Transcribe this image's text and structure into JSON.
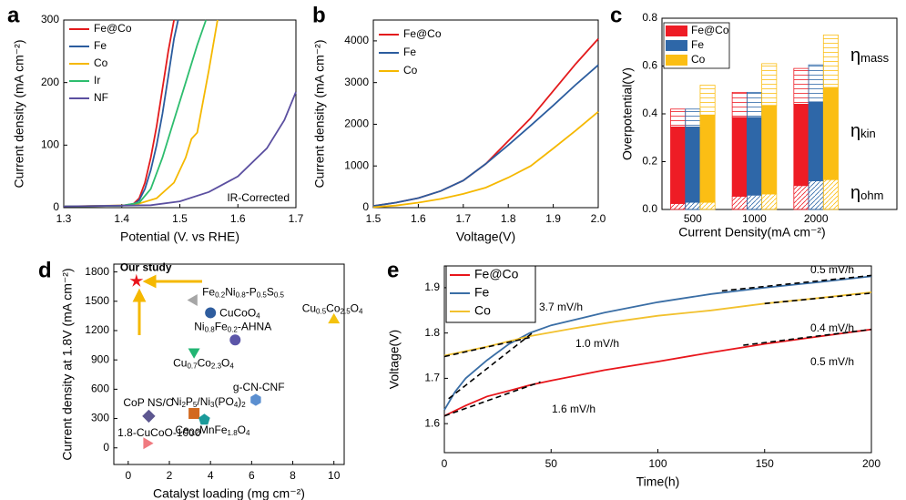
{
  "chart_data": [
    {
      "panel": "a",
      "type": "line",
      "xlabel": "Potential (V. vs RHE)",
      "ylabel": "Current density (mA cm⁻²)",
      "xlim": [
        1.3,
        1.7
      ],
      "xticks": [
        1.3,
        1.4,
        1.5,
        1.6,
        1.7
      ],
      "ylim": [
        0,
        300
      ],
      "yticks": [
        0,
        100,
        200,
        300
      ],
      "legend": "upper-left",
      "annotations": [
        {
          "text": "IR-Corrected"
        }
      ],
      "series": [
        {
          "name": "Fe@Co",
          "color": "#e31a1c",
          "x": [
            1.3,
            1.4,
            1.42,
            1.43,
            1.44,
            1.45,
            1.46,
            1.47,
            1.48,
            1.49
          ],
          "values": [
            2,
            3,
            6,
            15,
            40,
            80,
            130,
            190,
            250,
            300
          ]
        },
        {
          "name": "Fe",
          "color": "#2b5c9e",
          "x": [
            1.3,
            1.4,
            1.42,
            1.43,
            1.44,
            1.45,
            1.46,
            1.47,
            1.48,
            1.49,
            1.497
          ],
          "values": [
            2,
            3,
            5,
            12,
            30,
            60,
            100,
            150,
            210,
            270,
            300
          ]
        },
        {
          "name": "Co",
          "color": "#f5b800",
          "x": [
            1.3,
            1.42,
            1.46,
            1.49,
            1.51,
            1.52,
            1.53,
            1.54,
            1.55,
            1.565
          ],
          "values": [
            2,
            4,
            15,
            40,
            80,
            110,
            120,
            170,
            220,
            300
          ]
        },
        {
          "name": "Ir",
          "color": "#2dbd6e",
          "x": [
            1.3,
            1.4,
            1.43,
            1.45,
            1.47,
            1.49,
            1.51,
            1.53,
            1.545
          ],
          "values": [
            2,
            3,
            8,
            30,
            80,
            140,
            200,
            260,
            300
          ]
        },
        {
          "name": "NF",
          "color": "#5b4fa0",
          "x": [
            1.3,
            1.45,
            1.5,
            1.55,
            1.6,
            1.65,
            1.68,
            1.7
          ],
          "values": [
            2,
            4,
            10,
            25,
            50,
            95,
            140,
            185
          ]
        }
      ]
    },
    {
      "panel": "b",
      "type": "line",
      "xlabel": "Voltage(V)",
      "ylabel": "Current density (mA cm⁻²)",
      "xlim": [
        1.5,
        2.0
      ],
      "xticks": [
        1.5,
        1.6,
        1.7,
        1.8,
        1.9,
        {
          "value": 2,
          "label": "2.0"
        }
      ],
      "ylim": [
        0,
        4500
      ],
      "yticks": [
        0,
        1000,
        2000,
        3000,
        4000
      ],
      "legend": "upper-left",
      "series": [
        {
          "name": "Fe@Co",
          "color": "#e31a1c",
          "x": [
            1.5,
            1.55,
            1.6,
            1.65,
            1.7,
            1.75,
            1.8,
            1.85,
            1.9,
            1.95,
            2.0
          ],
          "values": [
            40,
            120,
            230,
            400,
            650,
            1050,
            1600,
            2150,
            2800,
            3450,
            4050
          ]
        },
        {
          "name": "Fe",
          "color": "#2b5c9e",
          "x": [
            1.5,
            1.55,
            1.6,
            1.65,
            1.7,
            1.75,
            1.8,
            1.85,
            1.9,
            1.95,
            2.0
          ],
          "values": [
            40,
            120,
            230,
            400,
            650,
            1050,
            1500,
            1970,
            2450,
            2950,
            3420
          ]
        },
        {
          "name": "Co",
          "color": "#f5b800",
          "x": [
            1.5,
            1.55,
            1.6,
            1.65,
            1.7,
            1.75,
            1.8,
            1.85,
            1.9,
            1.95,
            2.0
          ],
          "values": [
            10,
            50,
            120,
            210,
            330,
            480,
            720,
            1000,
            1420,
            1850,
            2300
          ]
        }
      ]
    },
    {
      "panel": "c",
      "type": "stacked-bar",
      "xlabel": "Current Density(mA cm⁻²)",
      "ylabel": "Overpotential(V)",
      "categories": [
        "500",
        "1000",
        "2000"
      ],
      "ylim": [
        0,
        0.8
      ],
      "yticks": [
        {
          "value": 0,
          "label": "0.0"
        },
        0.2,
        0.4,
        0.6,
        0.8
      ],
      "legend": "upper-left",
      "annotations": [
        {
          "text": "ηmass"
        },
        {
          "text": "ηkin"
        },
        {
          "text": "ηohm"
        }
      ],
      "series": [
        {
          "name": "Fe@Co",
          "color": "#ee1c25",
          "values": [
            [
              0.025,
              0.32,
              0.075
            ],
            [
              0.055,
              0.33,
              0.105
            ],
            [
              0.1,
              0.34,
              0.15
            ]
          ]
        },
        {
          "name": "Fe",
          "color": "#2e67a8",
          "values": [
            [
              0.03,
              0.315,
              0.075
            ],
            [
              0.06,
              0.325,
              0.105
            ],
            [
              0.12,
              0.33,
              0.155
            ]
          ]
        },
        {
          "name": "Co",
          "color": "#fbbe14",
          "values": [
            [
              0.03,
              0.365,
              0.125
            ],
            [
              0.065,
              0.37,
              0.175
            ],
            [
              0.125,
              0.385,
              0.22
            ]
          ]
        }
      ]
    },
    {
      "panel": "d",
      "type": "scatter",
      "xlabel": "Catalyst loading (mg cm⁻²)",
      "ylabel": "Current density at 1.8V (mA cm⁻²)",
      "xlim": [
        -0.7,
        10.5
      ],
      "xticks": [
        0,
        2,
        4,
        6,
        8,
        10
      ],
      "ylim": [
        -170,
        1880
      ],
      "yticks": [
        0,
        300,
        600,
        900,
        1200,
        1500,
        1800
      ],
      "labels": [
        "Our study",
        "Fe0.2Ni0.8-P0.5S0.5",
        "CuCoO4",
        "Ni0.8Fe0.2-AHNA",
        "Cu0.7Co2.3O4",
        "Cu0.5Co2.5O4",
        "g-CN-CNF",
        "CoP NS/C",
        "Ni2P5/Ni3(PO4)2",
        "Ce0.2MnFe1.8O4",
        "1.8-CuCoO-1000"
      ],
      "x": [
        0.4,
        3.2,
        4.0,
        5.2,
        3.2,
        10,
        6.2,
        1.0,
        3.2,
        3.7,
        0.9
      ],
      "values": [
        1707,
        1512,
        1382,
        1104,
        983,
        1308,
        492,
        325,
        352,
        288,
        46
      ],
      "markers": [
        "star",
        "triangle-left",
        "circle",
        "circle",
        "triangle-down",
        "triangle-up",
        "hexagon",
        "diamond",
        "square",
        "pentagon",
        "triangle-right"
      ],
      "colors": [
        "#e8141b",
        "#a6a6a6",
        "#2f5d9e",
        "#5b55a8",
        "#22b573",
        "#f4c20d",
        "#5b8fd0",
        "#5d5790",
        "#d2691e",
        "#1a9a9a",
        "#f07a80"
      ]
    },
    {
      "panel": "e",
      "type": "line",
      "xlabel": "Time(h)",
      "ylabel": "Voltage(V)",
      "xlim": [
        0,
        200
      ],
      "xticks": [
        0,
        50,
        100,
        150,
        200
      ],
      "ylim": [
        1.536,
        1.948
      ],
      "yticks": [
        1.6,
        1.7,
        1.8,
        1.9
      ],
      "legend": "upper-left",
      "series": [
        {
          "name": "Fe@Co",
          "color": "#e8151b",
          "x": [
            0,
            10,
            20,
            30,
            40,
            50,
            75,
            100,
            125,
            150,
            175,
            200
          ],
          "values": [
            1.617,
            1.64,
            1.66,
            1.672,
            1.685,
            1.695,
            1.718,
            1.737,
            1.757,
            1.776,
            1.792,
            1.808
          ]
        },
        {
          "name": "Fe",
          "color": "#3a6ea5",
          "x": [
            0,
            5,
            10,
            20,
            30,
            40,
            50,
            75,
            100,
            125,
            150,
            175,
            200
          ],
          "values": [
            1.63,
            1.67,
            1.7,
            1.74,
            1.775,
            1.8,
            1.817,
            1.845,
            1.868,
            1.886,
            1.9,
            1.912,
            1.925
          ]
        },
        {
          "name": "Co",
          "color": "#f2c12e",
          "x": [
            0,
            20,
            40,
            60,
            80,
            100,
            125,
            150,
            175,
            200
          ],
          "values": [
            1.75,
            1.77,
            1.793,
            1.81,
            1.825,
            1.838,
            1.85,
            1.865,
            1.877,
            1.89
          ]
        }
      ],
      "fits": [
        {
          "x": [
            0,
            45
          ],
          "values": [
            1.617,
            1.692
          ]
        },
        {
          "x": [
            140,
            200
          ],
          "values": [
            1.773,
            1.808
          ]
        },
        {
          "x": [
            2,
            42
          ],
          "values": [
            1.655,
            1.803
          ]
        },
        {
          "x": [
            130,
            200
          ],
          "values": [
            1.893,
            1.927
          ]
        },
        {
          "x": [
            0,
            40
          ],
          "values": [
            1.748,
            1.79
          ]
        },
        {
          "x": [
            150,
            200
          ],
          "values": [
            1.865,
            1.888
          ]
        }
      ],
      "annotations": [
        {
          "text": "0.5 mV/h",
          "color": "#3a6ea5"
        },
        {
          "text": "3.7 mV/h",
          "color": "#3a6ea5"
        },
        {
          "text": "1.0 mV/h",
          "color": "#f2c12e"
        },
        {
          "text": "0.4 mV/h",
          "color": "#f2c12e"
        },
        {
          "text": "1.6 mV/h",
          "color": "#e8151b"
        },
        {
          "text": "0.5 mV/h",
          "color": "#e8151b"
        }
      ]
    }
  ]
}
